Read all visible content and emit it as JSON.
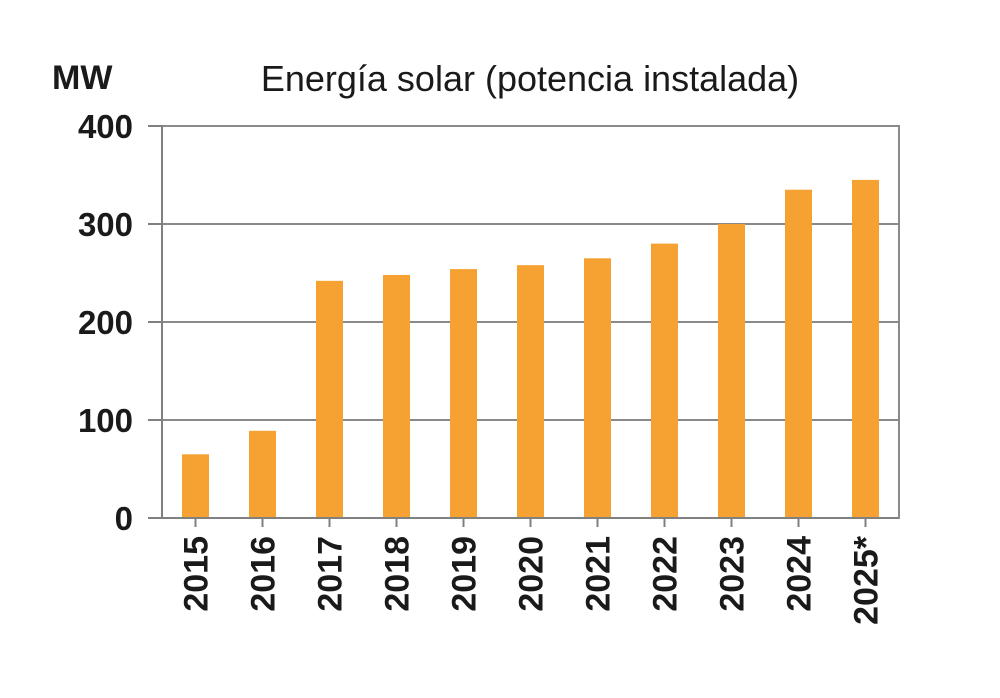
{
  "chart": {
    "title": "Energía solar (potencia instalada)",
    "unit_label": "MW"
  },
  "chart_data": {
    "type": "bar",
    "title": "Energía solar (potencia instalada)",
    "ylabel": "MW",
    "xlabel": "",
    "categories": [
      "2015",
      "2016",
      "2017",
      "2018",
      "2019",
      "2020",
      "2021",
      "2022",
      "2023",
      "2024",
      "2025*"
    ],
    "values": [
      65,
      89,
      242,
      248,
      254,
      258,
      265,
      280,
      300,
      335,
      345
    ],
    "ylim": [
      0,
      400
    ],
    "yticks": [
      0,
      100,
      200,
      300,
      400
    ],
    "grid": true,
    "legend_position": "none",
    "bar_color": "#F6A233",
    "axis_color": "#808080",
    "grid_color": "#8A8A8A",
    "text_color": "#1A1A1A",
    "background_color": "#FFFFFF"
  }
}
